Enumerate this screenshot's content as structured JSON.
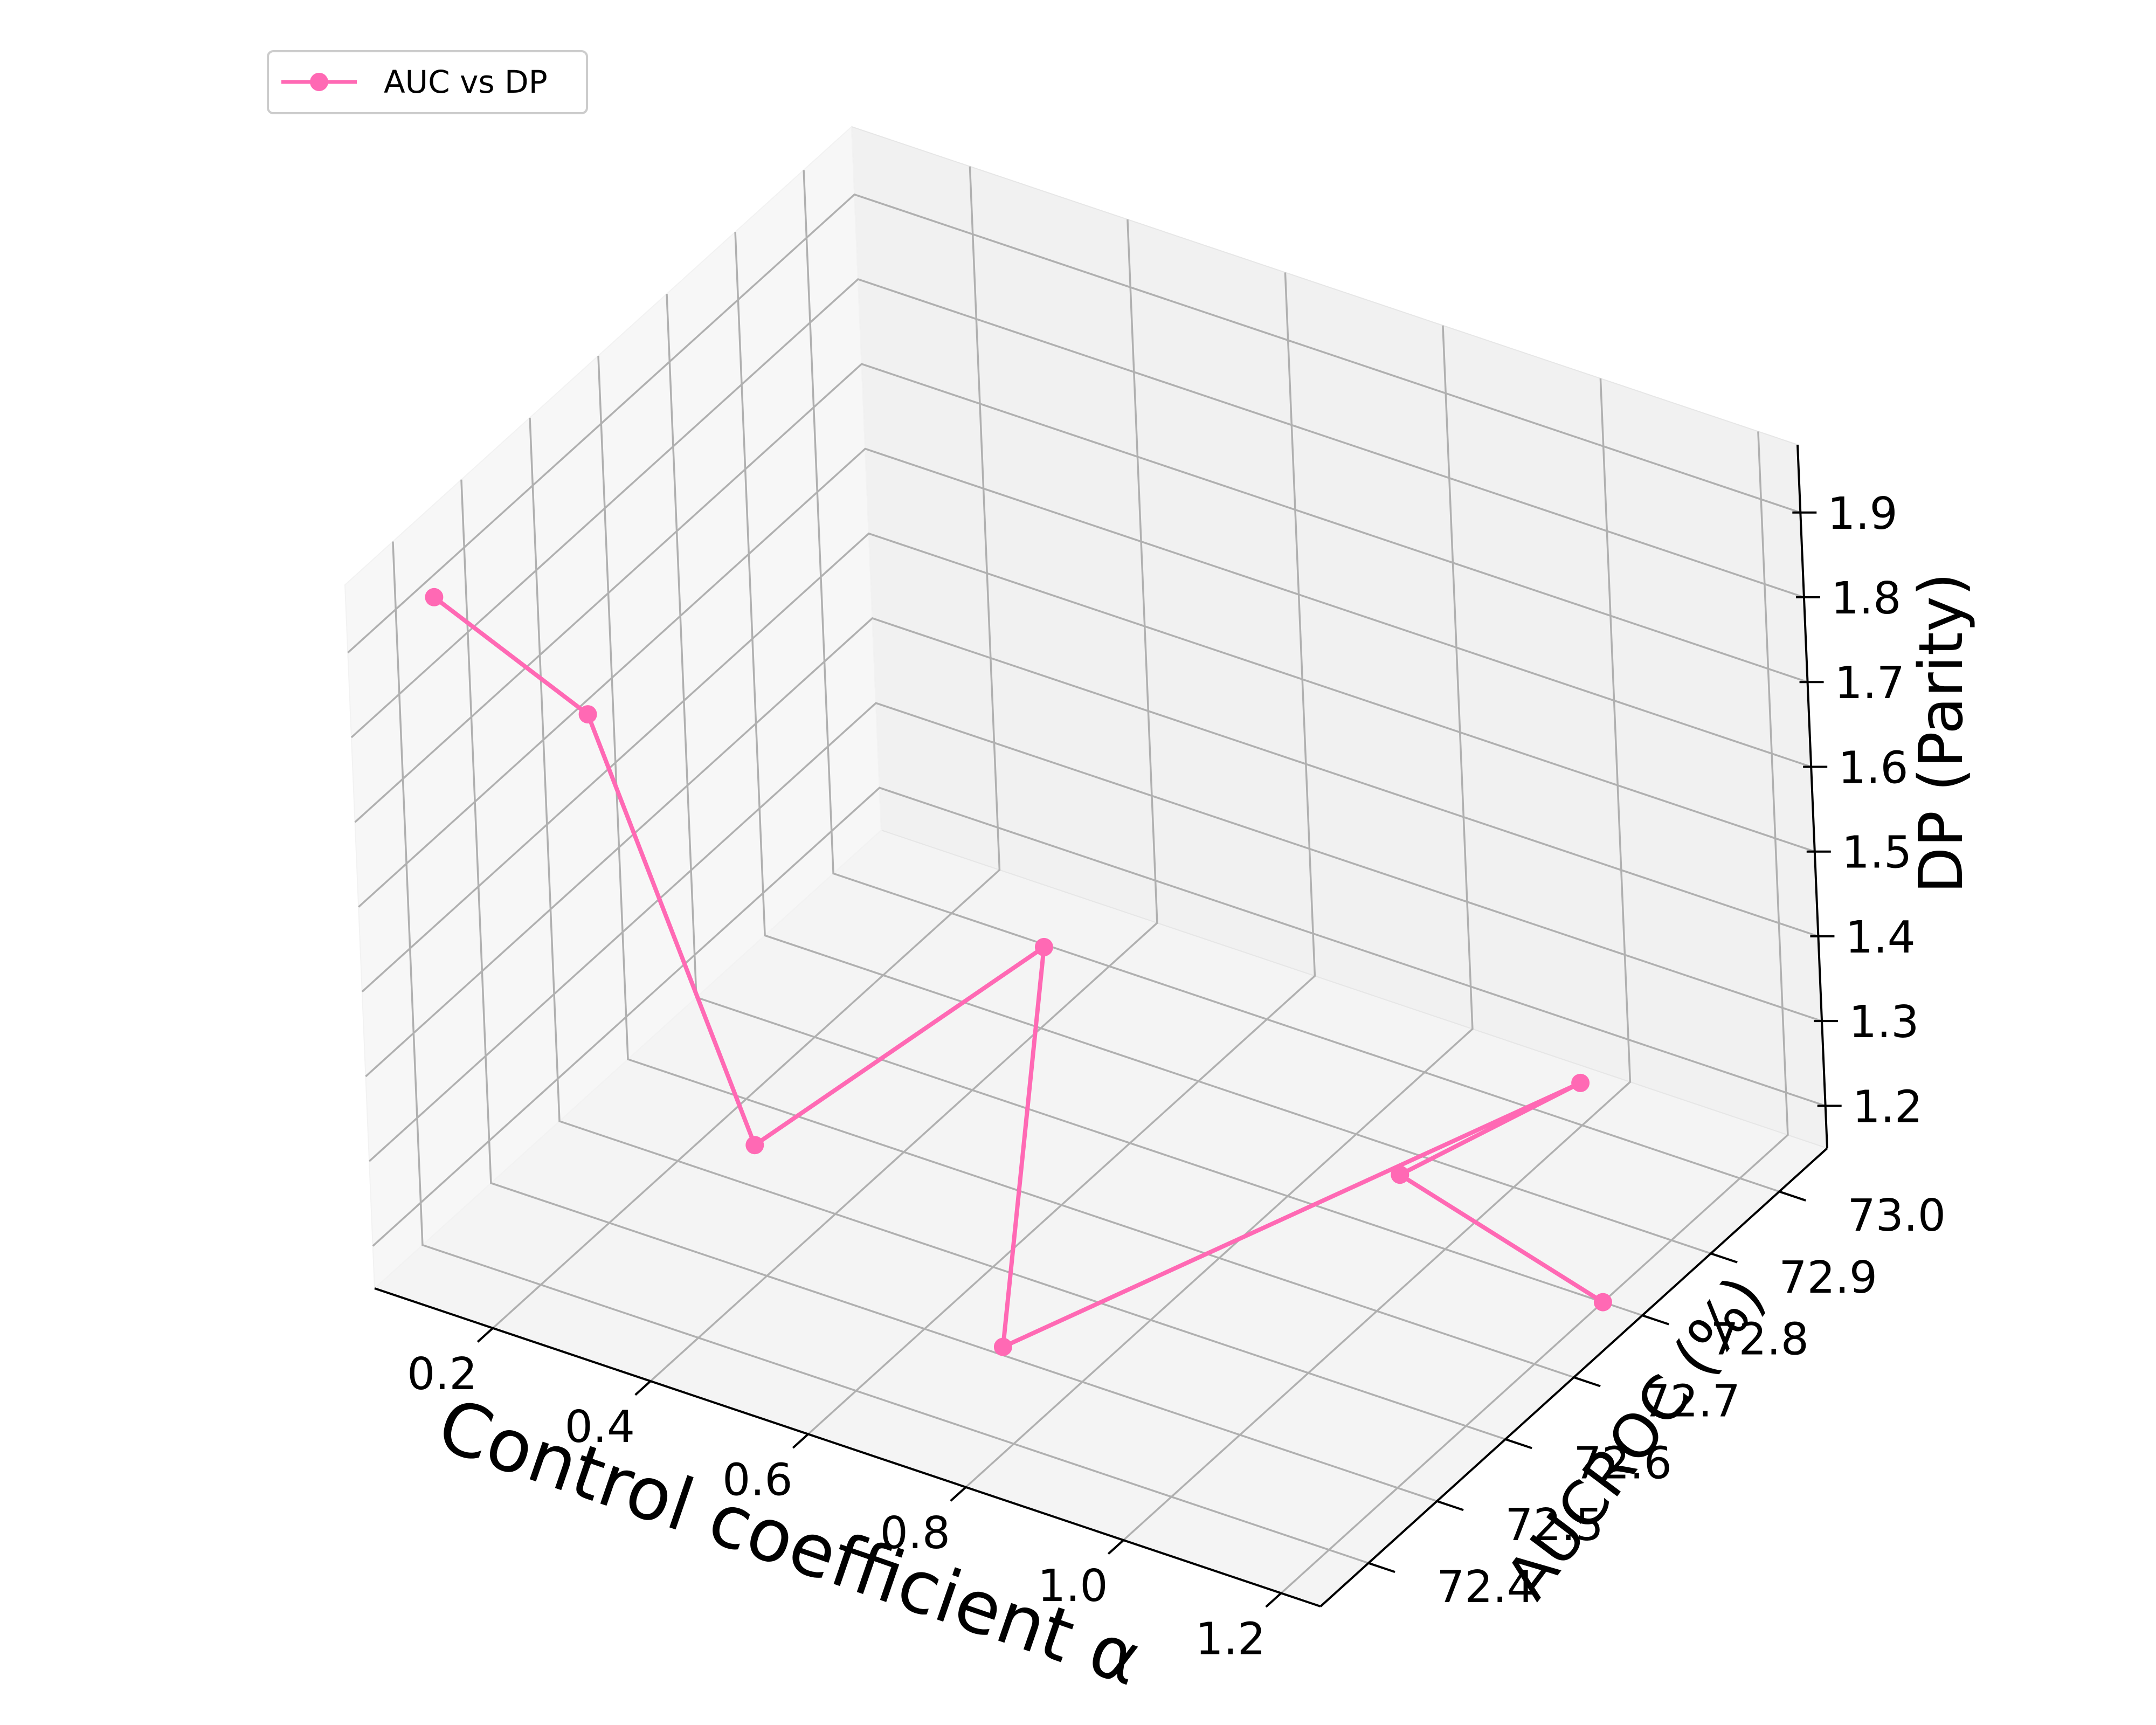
{
  "chart_data": {
    "type": "line",
    "projection": "3d",
    "xlabel": "Control coefficient α",
    "ylabel": "AUCROC (%)",
    "zlabel": "DP (Parity)",
    "xticks": [
      "0.2",
      "0.4",
      "0.6",
      "0.8",
      "1.0",
      "1.2"
    ],
    "yticks": [
      "72.4",
      "72.5",
      "72.6",
      "72.7",
      "72.8",
      "72.9",
      "73.0"
    ],
    "zticks": [
      "1.2",
      "1.3",
      "1.4",
      "1.5",
      "1.6",
      "1.7",
      "1.8",
      "1.9"
    ],
    "xlim": [
      0.05,
      1.25
    ],
    "ylim": [
      72.33,
      73.07
    ],
    "zlim": [
      1.15,
      1.98
    ],
    "grid": true,
    "legend_position": "top-left",
    "series": [
      {
        "name": "AUC vs DP",
        "color": "#ff69b4",
        "marker": "circle",
        "points": [
          {
            "x": 0.1,
            "y": 72.4,
            "z": 1.93
          },
          {
            "x": 0.2,
            "y": 72.5,
            "z": 1.75
          },
          {
            "x": 0.3,
            "y": 72.6,
            "z": 1.2
          },
          {
            "x": 0.5,
            "y": 72.8,
            "z": 1.35
          },
          {
            "x": 0.7,
            "y": 72.5,
            "z": 1.16
          },
          {
            "x": 1.0,
            "y": 73.0,
            "z": 1.2
          },
          {
            "x": 0.9,
            "y": 72.85,
            "z": 1.17
          },
          {
            "x": 1.2,
            "y": 72.8,
            "z": 1.15
          }
        ]
      }
    ]
  }
}
